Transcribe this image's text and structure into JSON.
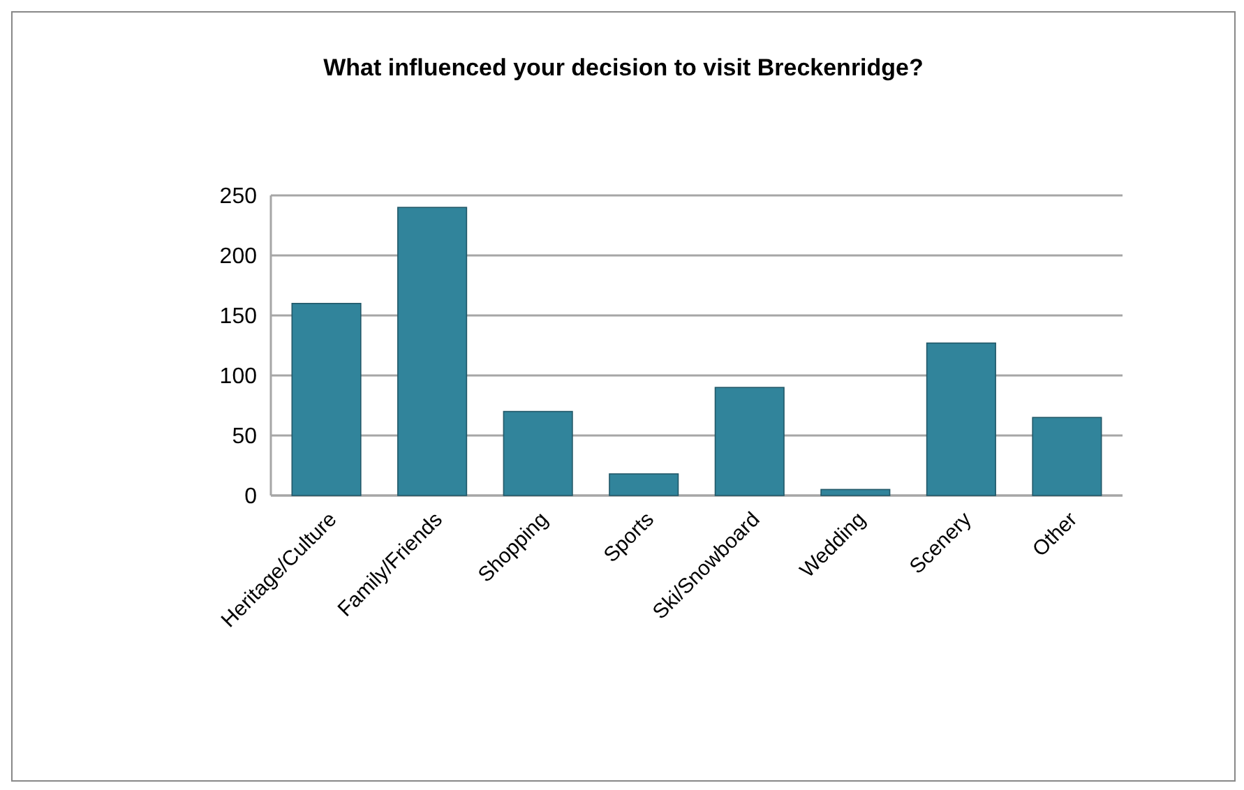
{
  "chart_data": {
    "type": "bar",
    "title": "What influenced your decision to visit Breckenridge?",
    "categories": [
      "Heritage/Culture",
      "Family/Friends",
      "Shopping",
      "Sports",
      "Ski/Snowboard",
      "Wedding",
      "Scenery",
      "Other"
    ],
    "values": [
      160,
      240,
      70,
      18,
      90,
      5,
      127,
      65
    ],
    "color": "#31849b",
    "ylim": [
      0,
      250
    ],
    "yticks": [
      0,
      50,
      100,
      150,
      200,
      250
    ],
    "grid": "y"
  }
}
